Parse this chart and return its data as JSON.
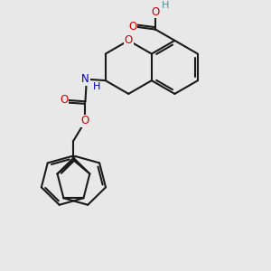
{
  "background_color": "#e8e8e8",
  "bond_color": "#1a1a1a",
  "bond_width": 1.5,
  "atom_colors": {
    "O": "#cc0000",
    "N": "#0000bb",
    "H_O": "#4a9090",
    "H_N": "#0000bb"
  },
  "figsize": [
    3.0,
    3.0
  ],
  "dpi": 100,
  "scale": 1.0
}
